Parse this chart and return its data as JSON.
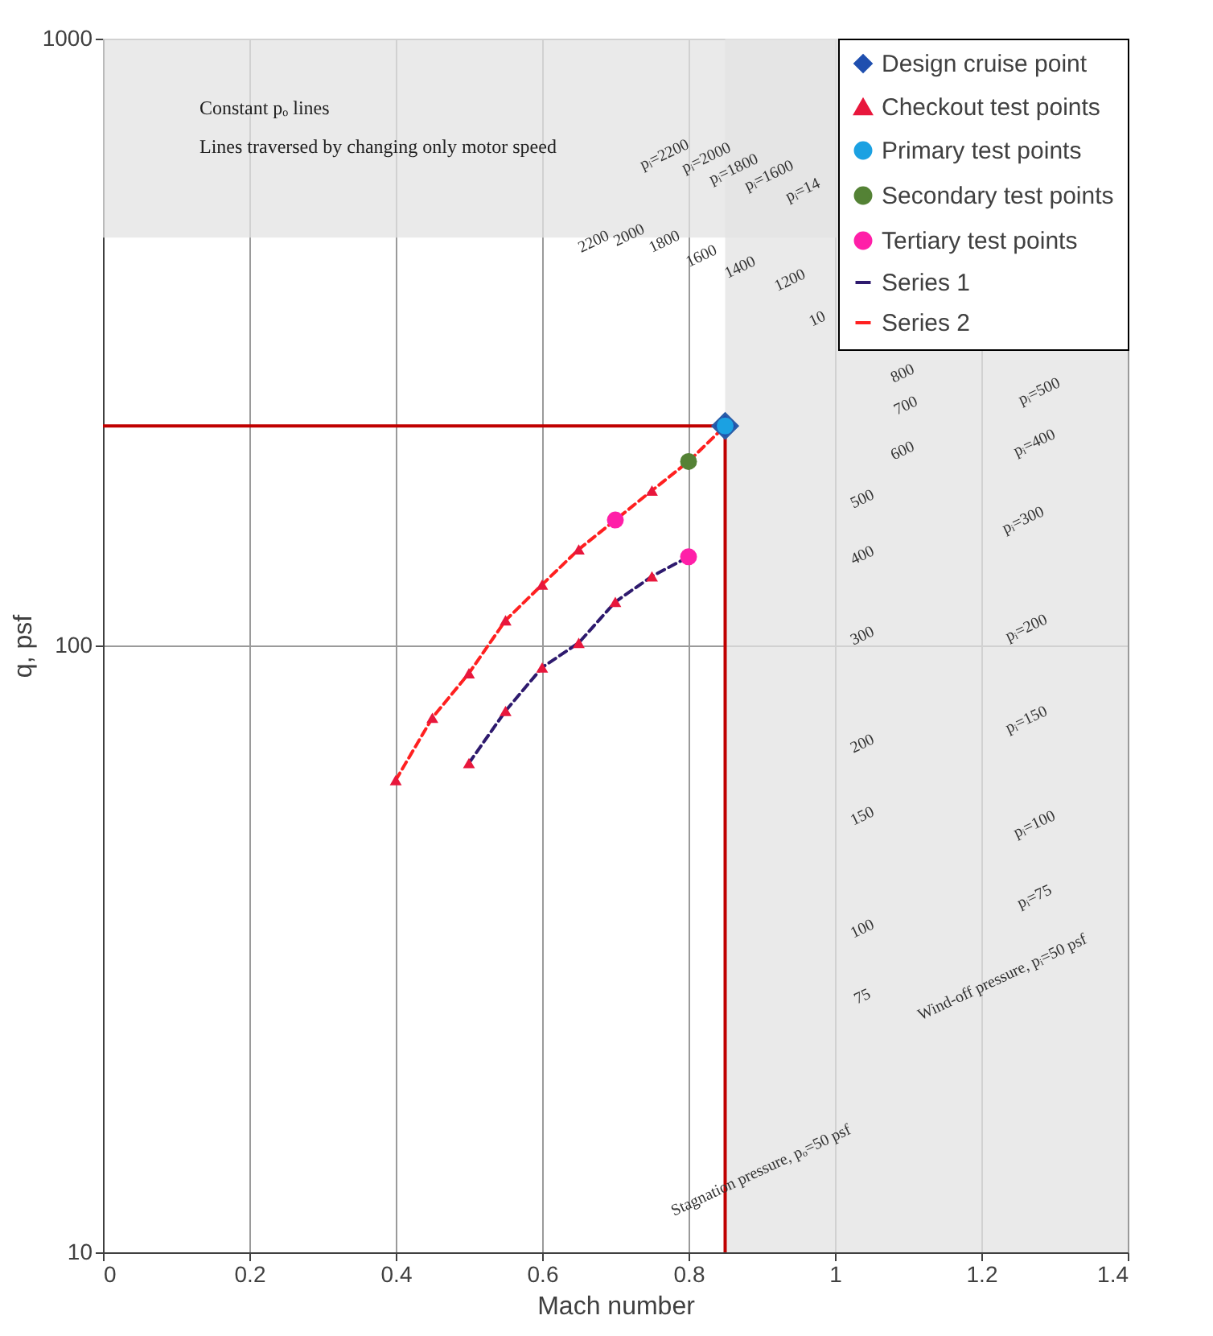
{
  "chart_data": {
    "type": "line",
    "xlabel": "Mach number",
    "ylabel": "q, psf",
    "xlim": [
      0,
      1.4
    ],
    "xticks": [
      {
        "value": 0,
        "label": "0"
      },
      0.2,
      0.4,
      0.6,
      0.8,
      {
        "value": 1,
        "label": "1"
      },
      1.2,
      1.4
    ],
    "ylim": [
      10,
      1000
    ],
    "yticks": [
      10,
      100,
      {
        "value": 1000,
        "label": "1000"
      }
    ],
    "log": "y",
    "grid": true,
    "legend": "top right",
    "series": [
      {
        "type": "scatter",
        "name": "Design cruise point",
        "color": "#1f4faf",
        "marker": "diamond",
        "x": [
          0.85
        ],
        "values": [
          230
        ]
      },
      {
        "type": "scatter",
        "name": "Checkout test points",
        "color": "#e8173c",
        "marker": "triangle",
        "x": [
          0.4,
          0.45,
          0.5,
          0.55,
          0.6,
          0.65,
          0.75,
          0.5,
          0.55,
          0.6,
          0.65,
          0.7,
          0.75
        ],
        "values": [
          60,
          76,
          90,
          110,
          126,
          144,
          180,
          64,
          78,
          92,
          101,
          118,
          130
        ]
      },
      {
        "type": "scatter",
        "name": "Primary test points",
        "color": "#1ba1e2",
        "marker": "circle",
        "x": [
          0.85
        ],
        "values": [
          230
        ]
      },
      {
        "type": "scatter",
        "name": "Secondary test points",
        "color": "#548235",
        "marker": "circle",
        "x": [
          0.8
        ],
        "values": [
          201
        ]
      },
      {
        "type": "scatter",
        "name": "Tertiary test points",
        "color": "#ff1fa8",
        "marker": "circle",
        "x": [
          0.7,
          0.8
        ],
        "values": [
          161,
          140
        ]
      },
      {
        "name": "Series 1",
        "color": "#2e1a6e",
        "line_style": "dashed",
        "marker": "none",
        "x": [
          0.5,
          0.55,
          0.6,
          0.65,
          0.7,
          0.75,
          0.8
        ],
        "values": [
          64,
          78,
          92,
          101,
          118,
          130,
          140
        ]
      },
      {
        "name": "Series 2",
        "color": "#ff2020",
        "line_style": "dashed",
        "marker": "none",
        "x": [
          0.4,
          0.45,
          0.5,
          0.55,
          0.6,
          0.65,
          0.7,
          0.75,
          0.8,
          0.85
        ],
        "values": [
          60,
          76,
          90,
          110,
          126,
          144,
          161,
          180,
          201,
          230
        ]
      },
      {
        "color": "#c00000",
        "line_style": "solid",
        "marker": "none",
        "x": [
          0,
          0.85,
          0.85
        ],
        "values": [
          230,
          230,
          10
        ]
      }
    ],
    "bands": [
      {
        "axis": "x",
        "from": 0.85,
        "to": 1.4,
        "color": "#e3e3e3"
      },
      {
        "axis": "y",
        "from": 470,
        "to": 1000,
        "color": "#e3e3e3"
      }
    ],
    "annotations": [
      "Constant pₒ lines",
      "Lines traversed by changing only motor speed",
      "pᵢ=2200",
      "pᵢ=2000",
      "pᵢ=1800",
      "pᵢ=1600",
      "pᵢ=14",
      "2200",
      "2000",
      "1800",
      "1600",
      "1400",
      "1200",
      "10",
      "800",
      "700",
      "600",
      "500",
      "400",
      "300",
      "200",
      "150",
      "100",
      "75",
      "pᵢ=500",
      "pᵢ=400",
      "pᵢ=300",
      "pᵢ=200",
      "pᵢ=150",
      "pᵢ=100",
      "pᵢ=75",
      "Wind-off pressure, pᵢ=50 psf",
      "Stagnation pressure, pₒ=50 psf"
    ]
  }
}
